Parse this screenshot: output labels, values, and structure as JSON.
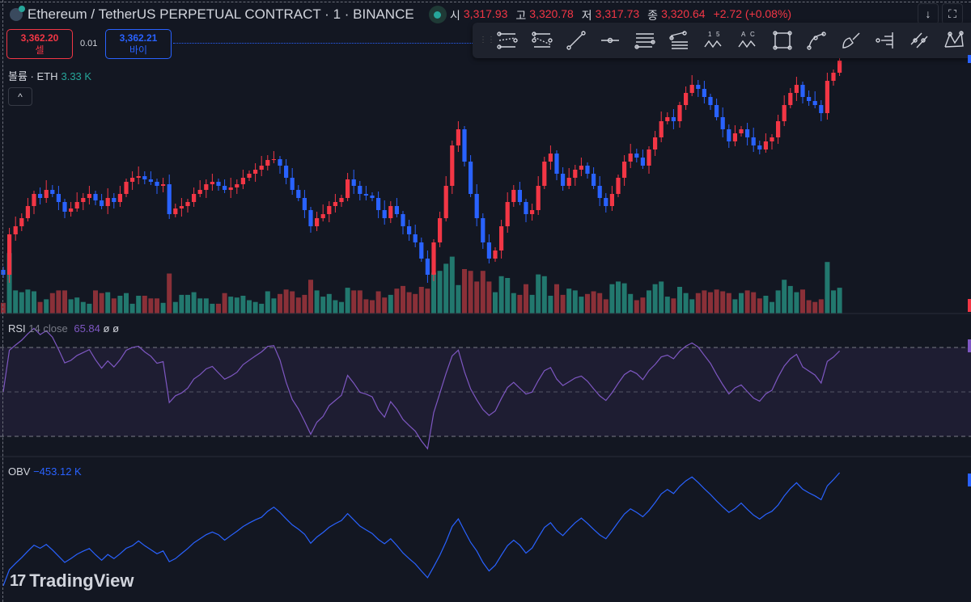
{
  "header": {
    "title": "Ethereum / TetherUS PERPETUAL CONTRACT · 1 · BINANCE",
    "ohlc": [
      {
        "k": "시",
        "v": "3,317.93"
      },
      {
        "k": "고",
        "v": "3,320.78"
      },
      {
        "k": "저",
        "v": "3,317.73"
      },
      {
        "k": "종",
        "v": "3,320.64"
      }
    ],
    "change": "+2.72 (+0.08%)",
    "download_icon": "↓",
    "fullscreen_icon": "⛶"
  },
  "trade": {
    "sell_price": "3,362.20",
    "sell_label": "셀",
    "spread": "0.01",
    "buy_price": "3,362.21",
    "buy_label": "바이"
  },
  "volume_legend": {
    "label": "볼륨 · ETH",
    "value": "3.33 K",
    "collapse_icon": "^"
  },
  "toolbar": {
    "tools": [
      "parallel-channel",
      "regression-trend",
      "trend-line",
      "horizontal-ray",
      "pitchfork",
      "fib-retracement",
      "abcd-1-5",
      "abcd-a-c",
      "rectangle",
      "path",
      "brush",
      "volume-profile",
      "ray-pair",
      "xabcd"
    ]
  },
  "rsi": {
    "label": "RSI",
    "params": "14 close",
    "value": "65.84",
    "extra1": "ø",
    "extra2": "ø"
  },
  "obv": {
    "label": "OBV",
    "value": "−453.12 K"
  },
  "brand": {
    "name": "TradingView"
  },
  "colors": {
    "up": "#f23645",
    "down": "#2962ff",
    "vol_up": "#22786e",
    "vol_down": "#8a3038",
    "rsi": "#7e57c2",
    "obv": "#2962ff"
  },
  "chart_data": {
    "type": "candlestick",
    "symbol": "ETHUSDT.P",
    "interval": "1",
    "closes": [
      3295,
      3307.5,
      3310,
      3312.5,
      3316.25,
      3320,
      3318.75,
      3321.25,
      3320,
      3317.5,
      3314.5,
      3315.5,
      3317.5,
      3318.75,
      3320,
      3318,
      3316.25,
      3318.75,
      3317.5,
      3320,
      3323.75,
      3325,
      3325.5,
      3324.5,
      3323.75,
      3322.5,
      3323,
      3313.75,
      3315.5,
      3316.25,
      3317.5,
      3320,
      3321.25,
      3323,
      3323.75,
      3322.5,
      3321.25,
      3322,
      3323,
      3325,
      3326.25,
      3327.5,
      3328.75,
      3330.5,
      3330.75,
      3328.75,
      3325,
      3321.25,
      3318.75,
      3315,
      3310,
      3312.5,
      3313.75,
      3316.25,
      3317.5,
      3318.75,
      3324.5,
      3322.5,
      3320,
      3319.5,
      3318.75,
      3315,
      3312.5,
      3316.25,
      3313.75,
      3310,
      3307.5,
      3305,
      3300,
      3295,
      3305,
      3312.5,
      3322.5,
      3335,
      3340,
      3330,
      3320,
      3312.5,
      3305,
      3300,
      3302.5,
      3310,
      3317.5,
      3321.25,
      3317.5,
      3313.75,
      3315,
      3322.5,
      3330,
      3332.5,
      3326.25,
      3322.5,
      3325,
      3327.5,
      3328.75,
      3326.25,
      3322.5,
      3318.75,
      3316.25,
      3320,
      3325,
      3330,
      3332.5,
      3331.25,
      3328.75,
      3333.75,
      3337.5,
      3342.5,
      3343.75,
      3342.5,
      3347.5,
      3351.25,
      3353.75,
      3352.5,
      3350,
      3347.5,
      3343.75,
      3340,
      3336.25,
      3338.75,
      3340,
      3337.5,
      3335,
      3333.75,
      3336.25,
      3337.5,
      3342.5,
      3347.5,
      3351.25,
      3353.75,
      3350,
      3348.75,
      3347.5,
      3345,
      3355,
      3357.5,
      3361.25
    ]
  }
}
